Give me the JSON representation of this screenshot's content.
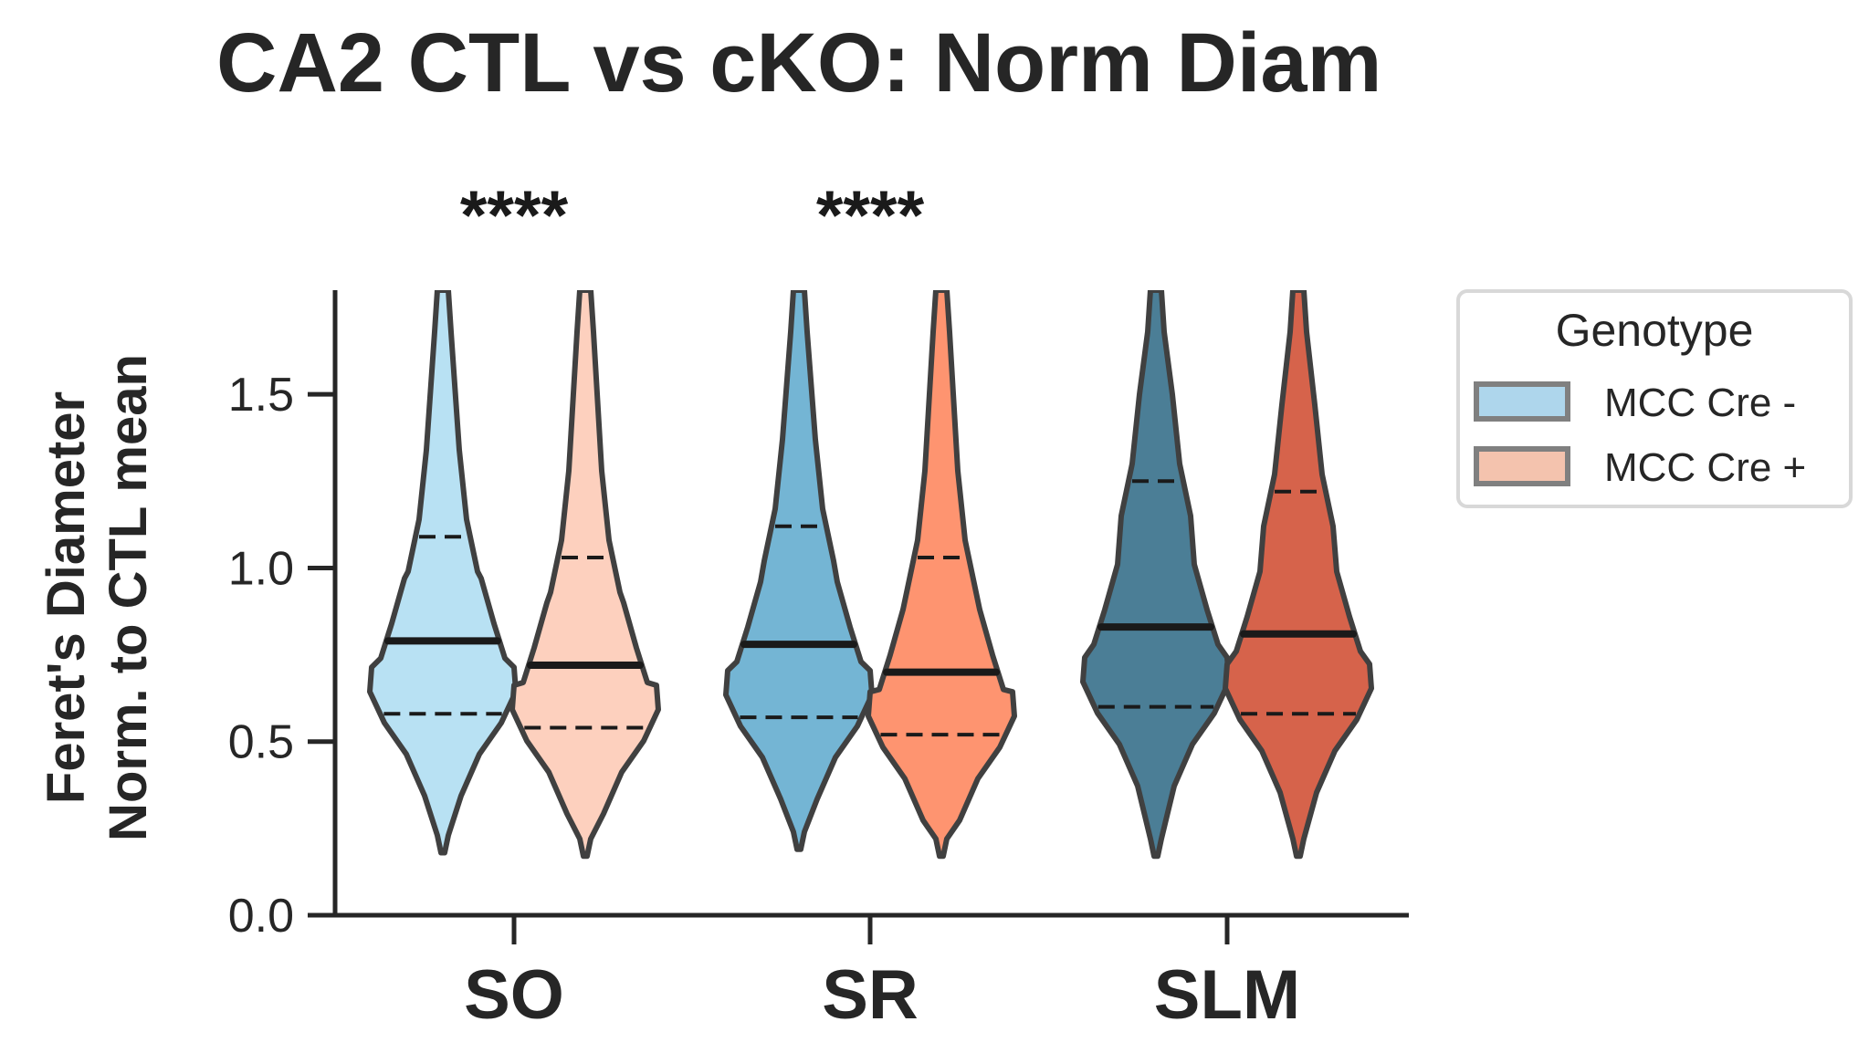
{
  "chart_data": {
    "type": "violin",
    "title": "CA2 CTL vs cKO: Norm Diam",
    "ylabel_line1": "Feret's Diameter",
    "ylabel_line2": "Norm. to CTL mean",
    "ylim": [
      0,
      1.8
    ],
    "yticks": [
      "0.0",
      "0.5",
      "1.0",
      "1.5"
    ],
    "categories": [
      "SO",
      "SR",
      "SLM"
    ],
    "significance": [
      "****",
      "****",
      ""
    ],
    "legend": {
      "title": "Genotype",
      "placement": "outside-right",
      "entries": [
        "MCC Cre -",
        "MCC Cre +"
      ],
      "colors": [
        "#aed6ec",
        "#f4c3ae"
      ]
    },
    "series": [
      {
        "name": "MCC Cre -",
        "colors": [
          "#b8e1f3",
          "#74b5d4",
          "#4b7e96"
        ],
        "median": [
          0.79,
          0.78,
          0.83
        ],
        "q1": [
          0.58,
          0.57,
          0.6
        ],
        "q3": [
          1.09,
          1.12,
          1.25
        ],
        "min": [
          0.18,
          0.19,
          0.17
        ],
        "max": [
          1.8,
          1.8,
          1.8
        ]
      },
      {
        "name": "MCC Cre +",
        "colors": [
          "#fdd0be",
          "#fe9470",
          "#d6634b"
        ],
        "median": [
          0.72,
          0.7,
          0.81
        ],
        "q1": [
          0.54,
          0.52,
          0.58
        ],
        "q3": [
          1.03,
          1.03,
          1.22
        ],
        "min": [
          0.17,
          0.17,
          0.17
        ],
        "max": [
          1.8,
          1.8,
          1.8
        ]
      }
    ]
  }
}
